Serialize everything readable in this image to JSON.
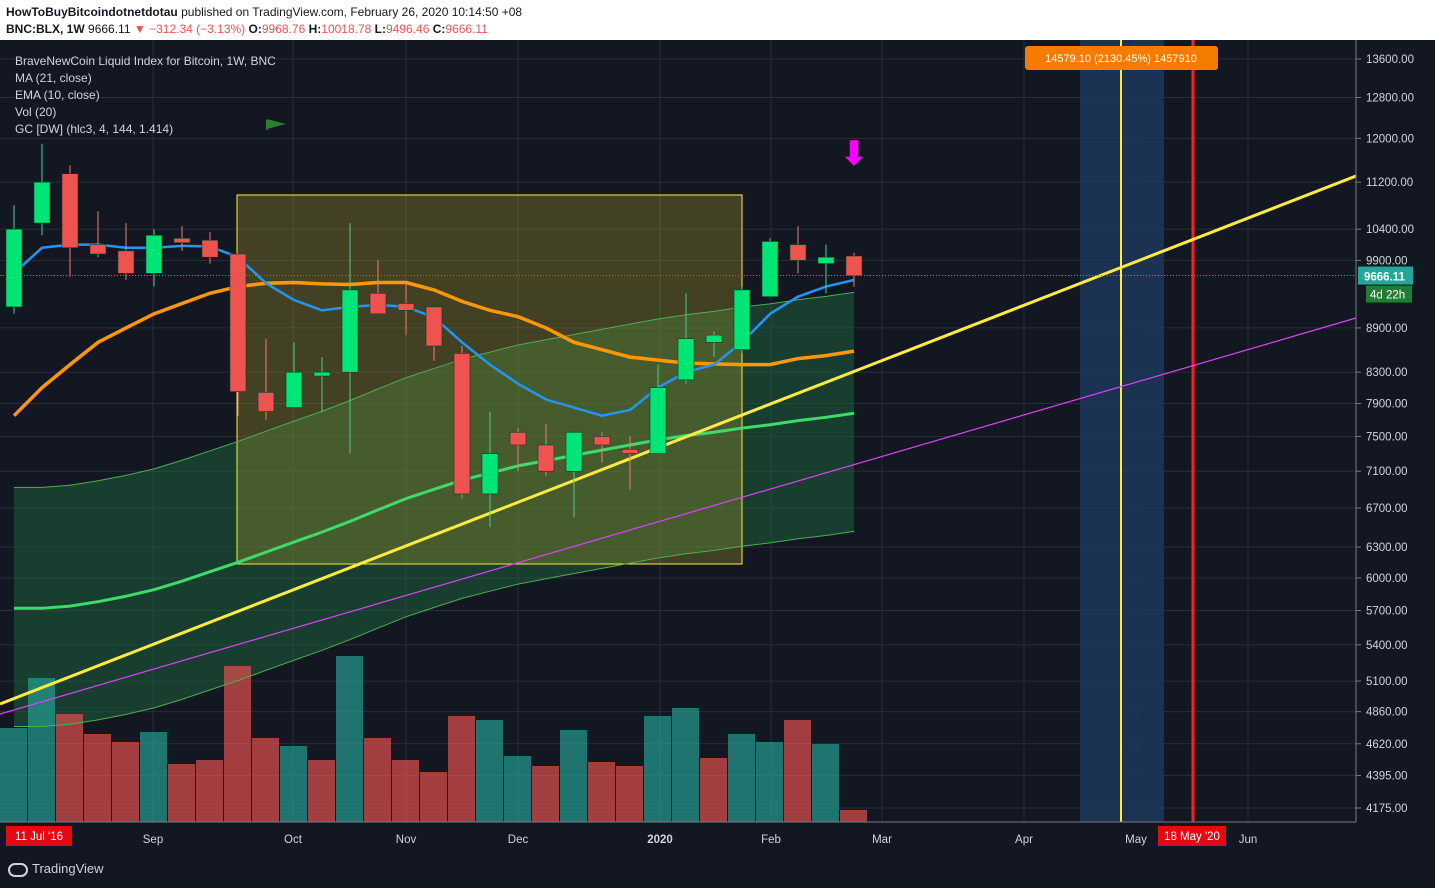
{
  "header": {
    "publisher": "HowToBuyBitcoindotnetdotau",
    "published_text": "published on TradingView.com, February 26, 2020 10:14:50 +08",
    "symbol": "BNC:BLX, 1W",
    "last": "9666.11",
    "change": "−312.34 (−3.13%)",
    "o_label": "O:",
    "o_val": "9968.76",
    "h_label": "H:",
    "h_val": "10018.78",
    "l_label": "L:",
    "l_val": "9496.46",
    "c_label": "C:",
    "c_val": "9666.11"
  },
  "legend": {
    "title": "BraveNewCoin Liquid Index for Bitcoin, 1W, BNC",
    "ma": "MA (21, close)",
    "ema": "EMA (10, close)",
    "vol": "Vol (20)",
    "gc": "GC [DW] (hlc3, 4, 144, 1.414)"
  },
  "footer": {
    "brand": "TradingView"
  },
  "colors": {
    "bg": "#131722",
    "up": "#00e676",
    "down": "#ef5350",
    "ma": "#ff9800",
    "ema": "#2196f3",
    "trend": "#ffeb3b",
    "magenta": "#e040fb",
    "green_mid": "#00e676",
    "box": "#ffeb3b",
    "vol_up": "#26a69a",
    "vol_down": "#ef5350"
  },
  "chart_data": {
    "type": "candlestick",
    "y_scale": "log",
    "ylim": [
      4050,
      14200
    ],
    "y_ticks": [
      "13600.00",
      "12800.00",
      "12000.00",
      "11200.00",
      "10400.00",
      "9900.00",
      "8900.00",
      "8300.00",
      "7900.00",
      "7500.00",
      "7100.00",
      "6700.00",
      "6300.00",
      "6000.00",
      "5700.00",
      "5400.00",
      "5100.00",
      "4860.00",
      "4620.00",
      "4395.00",
      "4175.00"
    ],
    "x_ticks": [
      "Sep",
      "Oct",
      "Nov",
      "Dec",
      "2020",
      "Feb",
      "Mar",
      "Apr",
      "May",
      "Jun"
    ],
    "x_start_label": "11 Jul '16",
    "x_marker_label": "18 May '20",
    "price_label": "9666.11",
    "countdown_label": "4d 22h",
    "annotation": "14579.10 (2130.45%) 1457910",
    "candles": [
      {
        "o": 9200,
        "h": 10800,
        "l": 9100,
        "c": 10400
      },
      {
        "o": 10500,
        "h": 11900,
        "l": 10300,
        "c": 11200
      },
      {
        "o": 11350,
        "h": 11500,
        "l": 9650,
        "c": 10100
      },
      {
        "o": 10150,
        "h": 10700,
        "l": 9950,
        "c": 10000
      },
      {
        "o": 10050,
        "h": 10500,
        "l": 9600,
        "c": 9700
      },
      {
        "o": 9700,
        "h": 10400,
        "l": 9500,
        "c": 10300
      },
      {
        "o": 10250,
        "h": 10450,
        "l": 10050,
        "c": 10180
      },
      {
        "o": 10220,
        "h": 10350,
        "l": 9850,
        "c": 9950
      },
      {
        "o": 10000,
        "h": 10000,
        "l": 7750,
        "c": 8050
      },
      {
        "o": 8040,
        "h": 8750,
        "l": 7700,
        "c": 7800
      },
      {
        "o": 7850,
        "h": 8700,
        "l": 7850,
        "c": 8300
      },
      {
        "o": 8250,
        "h": 8500,
        "l": 7800,
        "c": 8300
      },
      {
        "o": 8300,
        "h": 10500,
        "l": 7300,
        "c": 9450
      },
      {
        "o": 9400,
        "h": 9900,
        "l": 9100,
        "c": 9100
      },
      {
        "o": 9250,
        "h": 9550,
        "l": 8800,
        "c": 9150
      },
      {
        "o": 9200,
        "h": 9200,
        "l": 8450,
        "c": 8650
      },
      {
        "o": 8550,
        "h": 8650,
        "l": 6800,
        "c": 6850
      },
      {
        "o": 6850,
        "h": 7800,
        "l": 6500,
        "c": 7300
      },
      {
        "o": 7550,
        "h": 7600,
        "l": 7100,
        "c": 7400
      },
      {
        "o": 7400,
        "h": 7650,
        "l": 7050,
        "c": 7100
      },
      {
        "o": 7100,
        "h": 7550,
        "l": 6600,
        "c": 7550
      },
      {
        "o": 7500,
        "h": 7550,
        "l": 7200,
        "c": 7400
      },
      {
        "o": 7350,
        "h": 7500,
        "l": 6900,
        "c": 7300
      },
      {
        "o": 7300,
        "h": 8400,
        "l": 7300,
        "c": 8100
      },
      {
        "o": 8200,
        "h": 9400,
        "l": 8150,
        "c": 8750
      },
      {
        "o": 8700,
        "h": 8850,
        "l": 8500,
        "c": 8800
      },
      {
        "o": 8600,
        "h": 9500,
        "l": 8550,
        "c": 9450
      },
      {
        "o": 9350,
        "h": 10250,
        "l": 9350,
        "c": 10200
      },
      {
        "o": 10150,
        "h": 10450,
        "l": 9700,
        "c": 9900
      },
      {
        "o": 9850,
        "h": 10150,
        "l": 9400,
        "c": 9950
      },
      {
        "o": 9968.76,
        "h": 10018.78,
        "l": 9496.46,
        "c": 9666.11
      }
    ],
    "ma_21": [
      7750,
      8100,
      8400,
      8700,
      8900,
      9100,
      9250,
      9400,
      9500,
      9550,
      9560,
      9540,
      9530,
      9560,
      9560,
      9450,
      9280,
      9150,
      9060,
      8900,
      8700,
      8600,
      8500,
      8460,
      8420,
      8410,
      8400,
      8400,
      8480,
      8520,
      8580
    ],
    "ema_10": [
      9700,
      10100,
      10150,
      10150,
      10100,
      10100,
      10130,
      10120,
      9950,
      9550,
      9300,
      9150,
      9200,
      9230,
      9200,
      9050,
      8700,
      8400,
      8150,
      7950,
      7850,
      7750,
      7820,
      8100,
      8300,
      8400,
      8700,
      9100,
      9350,
      9500,
      9600
    ],
    "gc_mid": [
      5720,
      5720,
      5740,
      5780,
      5830,
      5890,
      5970,
      6060,
      6150,
      6250,
      6350,
      6450,
      6560,
      6680,
      6800,
      6900,
      7000,
      7080,
      7160,
      7220,
      7280,
      7340,
      7400,
      7460,
      7510,
      7550,
      7600,
      7640,
      7690,
      7730,
      7780
    ],
    "volume": [
      {
        "v": 0.47,
        "dir": "up"
      },
      {
        "v": 0.72,
        "dir": "up"
      },
      {
        "v": 0.54,
        "dir": "down"
      },
      {
        "v": 0.44,
        "dir": "down"
      },
      {
        "v": 0.4,
        "dir": "down"
      },
      {
        "v": 0.45,
        "dir": "up"
      },
      {
        "v": 0.29,
        "dir": "down"
      },
      {
        "v": 0.31,
        "dir": "down"
      },
      {
        "v": 0.78,
        "dir": "down"
      },
      {
        "v": 0.42,
        "dir": "down"
      },
      {
        "v": 0.38,
        "dir": "up"
      },
      {
        "v": 0.31,
        "dir": "down"
      },
      {
        "v": 0.83,
        "dir": "up"
      },
      {
        "v": 0.42,
        "dir": "down"
      },
      {
        "v": 0.31,
        "dir": "down"
      },
      {
        "v": 0.25,
        "dir": "down"
      },
      {
        "v": 0.53,
        "dir": "down"
      },
      {
        "v": 0.51,
        "dir": "up"
      },
      {
        "v": 0.33,
        "dir": "up"
      },
      {
        "v": 0.28,
        "dir": "down"
      },
      {
        "v": 0.46,
        "dir": "up"
      },
      {
        "v": 0.3,
        "dir": "down"
      },
      {
        "v": 0.28,
        "dir": "down"
      },
      {
        "v": 0.53,
        "dir": "up"
      },
      {
        "v": 0.57,
        "dir": "up"
      },
      {
        "v": 0.32,
        "dir": "down"
      },
      {
        "v": 0.44,
        "dir": "up"
      },
      {
        "v": 0.4,
        "dir": "up"
      },
      {
        "v": 0.51,
        "dir": "down"
      },
      {
        "v": 0.39,
        "dir": "up"
      },
      {
        "v": 0.06,
        "dir": "down"
      }
    ]
  }
}
